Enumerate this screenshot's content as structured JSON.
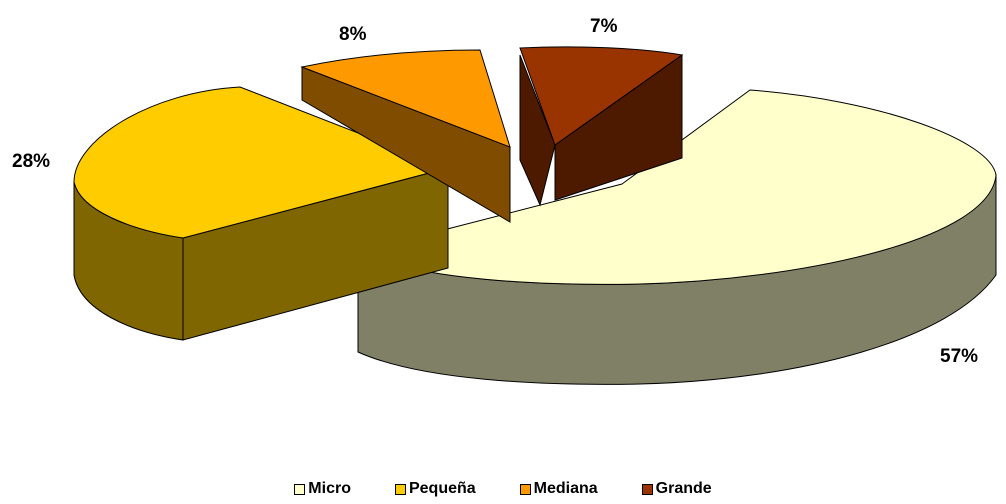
{
  "chart_data": {
    "type": "pie",
    "title": "",
    "legend_position": "bottom",
    "slices": [
      {
        "name": "Micro",
        "value": 57,
        "label": "57%",
        "color": "#FFFFCC",
        "side_color": "#808066"
      },
      {
        "name": "Pequeña",
        "value": 28,
        "label": "28%",
        "color": "#FFCC00",
        "side_color": "#806600"
      },
      {
        "name": "Mediana",
        "value": 8,
        "label": "8%",
        "color": "#FF9900",
        "side_color": "#804D00"
      },
      {
        "name": "Grande",
        "value": 7,
        "label": "7%",
        "color": "#993300",
        "side_color": "#4D1A00"
      }
    ]
  }
}
